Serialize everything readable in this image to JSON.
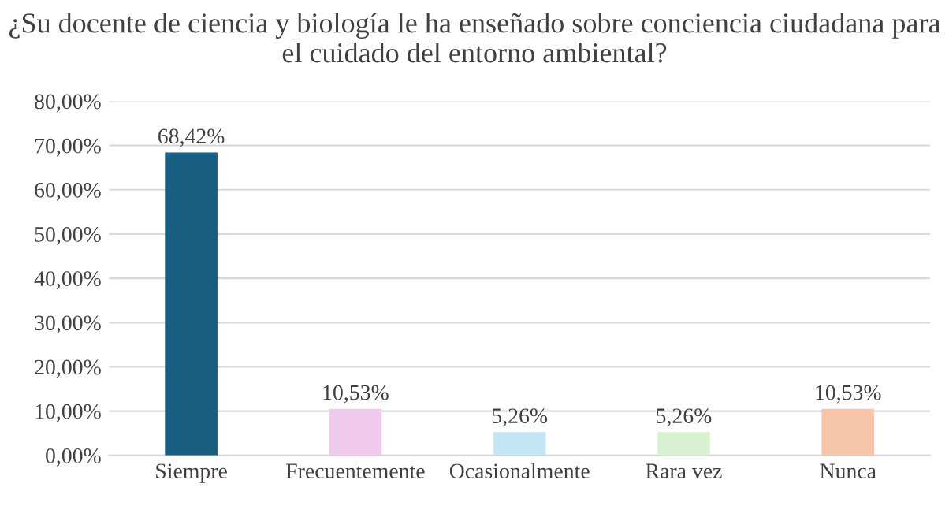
{
  "chart_data": {
    "type": "bar",
    "title": "¿Su docente de ciencia y biología le ha enseñado sobre conciencia ciudadana para el cuidado del entorno ambiental?",
    "categories": [
      "Siempre",
      "Frecuentemente",
      "Ocasionalmente",
      "Rara vez",
      "Nunca"
    ],
    "values": [
      68.42,
      10.53,
      5.26,
      5.26,
      10.53
    ],
    "value_labels": [
      "68,42%",
      "10,53%",
      "5,26%",
      "5,26%",
      "10,53%"
    ],
    "colors": [
      "#175e80",
      "#f0c9ee",
      "#c3e5f6",
      "#d8f1d0",
      "#f6c5aa"
    ],
    "ylim": [
      0,
      80
    ],
    "yticks": [
      {
        "value": 0,
        "label": "0,00%"
      },
      {
        "value": 10,
        "label": "10,00%"
      },
      {
        "value": 20,
        "label": "20,00%"
      },
      {
        "value": 30,
        "label": "30,00%"
      },
      {
        "value": 40,
        "label": "40,00%"
      },
      {
        "value": 50,
        "label": "50,00%"
      },
      {
        "value": 60,
        "label": "60,00%"
      },
      {
        "value": 70,
        "label": "70,00%"
      },
      {
        "value": 80,
        "label": "80,00%"
      }
    ],
    "grid": "y"
  }
}
